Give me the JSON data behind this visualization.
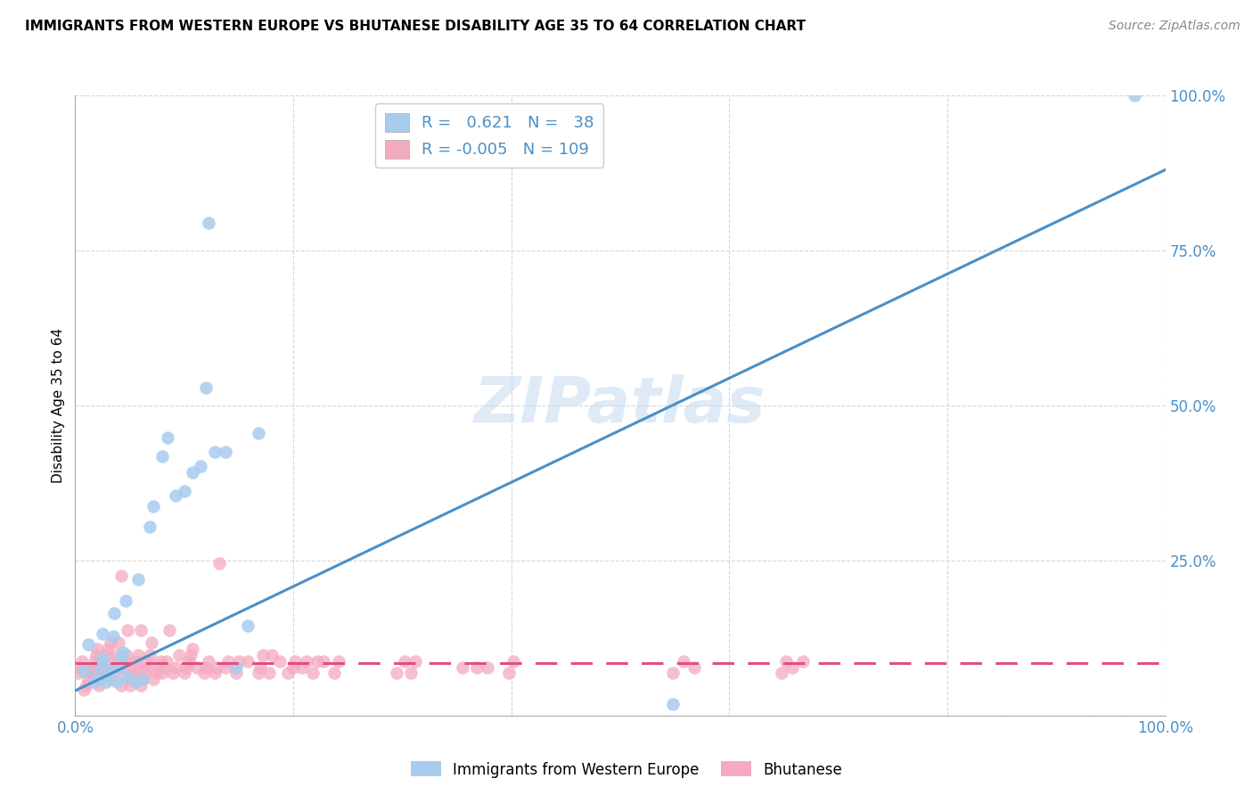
{
  "title": "IMMIGRANTS FROM WESTERN EUROPE VS BHUTANESE DISABILITY AGE 35 TO 64 CORRELATION CHART",
  "source": "Source: ZipAtlas.com",
  "ylabel": "Disability Age 35 to 64",
  "xmin": 0.0,
  "xmax": 1.0,
  "ymin": 0.0,
  "ymax": 1.0,
  "xtick_positions": [
    0.0,
    0.2,
    0.4,
    0.6,
    0.8,
    1.0
  ],
  "xticklabels": [
    "0.0%",
    "",
    "",
    "",
    "",
    "100.0%"
  ],
  "ytick_positions": [
    0.0,
    0.25,
    0.5,
    0.75,
    1.0
  ],
  "yticklabels": [
    "",
    "25.0%",
    "50.0%",
    "75.0%",
    "100.0%"
  ],
  "legend_R_blue": "0.621",
  "legend_N_blue": "38",
  "legend_R_pink": "-0.005",
  "legend_N_pink": "109",
  "blue_color": "#A8CCEE",
  "pink_color": "#F4AABF",
  "blue_line_color": "#4A90C8",
  "pink_line_color": "#E05080",
  "blue_line_x": [
    0.0,
    1.0
  ],
  "blue_line_y": [
    0.04,
    0.88
  ],
  "pink_line_x": [
    0.0,
    1.0
  ],
  "pink_line_y": [
    0.085,
    0.085
  ],
  "watermark_text": "ZIPatlas",
  "watermark_color": "#C8DCF0",
  "blue_points_x": [
    0.008,
    0.012,
    0.018,
    0.02,
    0.022,
    0.025,
    0.025,
    0.028,
    0.03,
    0.032,
    0.035,
    0.036,
    0.038,
    0.04,
    0.042,
    0.044,
    0.046,
    0.048,
    0.055,
    0.058,
    0.062,
    0.068,
    0.072,
    0.08,
    0.085,
    0.092,
    0.1,
    0.108,
    0.115,
    0.12,
    0.122,
    0.128,
    0.138,
    0.148,
    0.158,
    0.168,
    0.548,
    0.972
  ],
  "blue_points_y": [
    0.072,
    0.115,
    0.055,
    0.062,
    0.082,
    0.092,
    0.132,
    0.055,
    0.065,
    0.075,
    0.128,
    0.165,
    0.055,
    0.078,
    0.095,
    0.102,
    0.185,
    0.062,
    0.055,
    0.22,
    0.058,
    0.305,
    0.338,
    0.418,
    0.448,
    0.355,
    0.362,
    0.392,
    0.402,
    0.528,
    0.795,
    0.425,
    0.425,
    0.078,
    0.145,
    0.455,
    0.018,
    1.0
  ],
  "pink_points_x": [
    0.002,
    0.004,
    0.006,
    0.008,
    0.01,
    0.012,
    0.014,
    0.015,
    0.016,
    0.017,
    0.018,
    0.019,
    0.02,
    0.022,
    0.022,
    0.024,
    0.024,
    0.025,
    0.026,
    0.028,
    0.03,
    0.032,
    0.032,
    0.034,
    0.035,
    0.036,
    0.038,
    0.04,
    0.042,
    0.042,
    0.044,
    0.045,
    0.046,
    0.047,
    0.048,
    0.05,
    0.052,
    0.054,
    0.055,
    0.056,
    0.058,
    0.06,
    0.06,
    0.062,
    0.064,
    0.065,
    0.066,
    0.068,
    0.07,
    0.072,
    0.075,
    0.076,
    0.078,
    0.08,
    0.082,
    0.084,
    0.086,
    0.09,
    0.092,
    0.095,
    0.1,
    0.102,
    0.104,
    0.106,
    0.108,
    0.112,
    0.118,
    0.12,
    0.122,
    0.128,
    0.13,
    0.132,
    0.138,
    0.14,
    0.148,
    0.15,
    0.158,
    0.168,
    0.17,
    0.172,
    0.178,
    0.18,
    0.188,
    0.195,
    0.2,
    0.202,
    0.208,
    0.212,
    0.218,
    0.222,
    0.228,
    0.238,
    0.242,
    0.295,
    0.302,
    0.308,
    0.312,
    0.355,
    0.368,
    0.378,
    0.398,
    0.402,
    0.548,
    0.558,
    0.568,
    0.648,
    0.652,
    0.658,
    0.668
  ],
  "pink_points_y": [
    0.068,
    0.078,
    0.088,
    0.042,
    0.048,
    0.058,
    0.068,
    0.07,
    0.078,
    0.078,
    0.088,
    0.098,
    0.108,
    0.048,
    0.058,
    0.065,
    0.068,
    0.078,
    0.078,
    0.098,
    0.108,
    0.118,
    0.058,
    0.068,
    0.078,
    0.088,
    0.098,
    0.118,
    0.225,
    0.048,
    0.068,
    0.078,
    0.088,
    0.098,
    0.138,
    0.048,
    0.058,
    0.068,
    0.078,
    0.088,
    0.098,
    0.138,
    0.048,
    0.058,
    0.068,
    0.078,
    0.088,
    0.098,
    0.118,
    0.058,
    0.068,
    0.078,
    0.088,
    0.068,
    0.078,
    0.088,
    0.138,
    0.068,
    0.078,
    0.098,
    0.068,
    0.078,
    0.088,
    0.098,
    0.108,
    0.078,
    0.068,
    0.078,
    0.088,
    0.068,
    0.078,
    0.245,
    0.078,
    0.088,
    0.068,
    0.088,
    0.088,
    0.068,
    0.078,
    0.098,
    0.068,
    0.098,
    0.088,
    0.068,
    0.078,
    0.088,
    0.078,
    0.088,
    0.068,
    0.088,
    0.088,
    0.068,
    0.088,
    0.068,
    0.088,
    0.068,
    0.088,
    0.078,
    0.078,
    0.078,
    0.068,
    0.088,
    0.068,
    0.088,
    0.078,
    0.068,
    0.088,
    0.078,
    0.088
  ]
}
